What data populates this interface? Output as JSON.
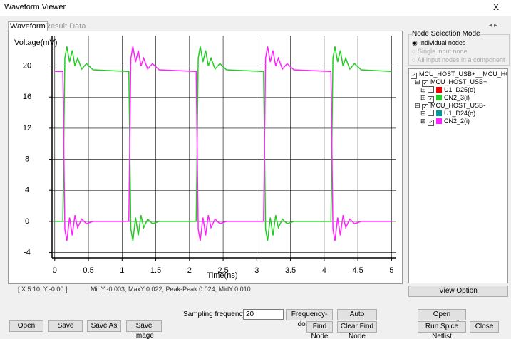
{
  "window": {
    "title": "Waveform Viewer",
    "close": "X"
  },
  "tabs": [
    "Waveform",
    "Result Data"
  ],
  "chart_data": {
    "type": "line",
    "ylabel": "Voltage(mV)",
    "xlabel": "Time(ns)",
    "x": [
      0,
      0.1,
      0.12,
      0.15,
      0.18,
      0.22,
      0.26,
      0.3,
      0.34,
      0.4,
      0.47,
      0.57,
      1.08,
      1.1,
      1.13,
      1.16,
      1.2,
      1.24,
      1.28,
      1.32,
      1.38,
      1.45,
      1.55,
      2.08,
      2.1,
      2.13,
      2.16,
      2.2,
      2.24,
      2.28,
      2.32,
      2.38,
      2.45,
      2.55,
      3.08,
      3.1,
      3.13,
      3.16,
      3.2,
      3.24,
      3.28,
      3.32,
      3.38,
      3.45,
      3.55,
      4.08,
      4.1,
      4.13,
      4.16,
      4.2,
      4.24,
      4.28,
      4.32,
      4.38,
      4.45,
      4.55,
      5
    ],
    "series": [
      {
        "name": "CN2_3(i)",
        "color": "#22cc22",
        "values": [
          0,
          0,
          0,
          21,
          22.5,
          20.5,
          22,
          20,
          21,
          19.6,
          20.3,
          19.5,
          19.3,
          19.3,
          -1,
          -2.5,
          0.5,
          -1.8,
          0.8,
          -0.8,
          0.3,
          -0.3,
          0,
          0,
          0,
          21,
          22.5,
          20.5,
          22,
          20,
          21,
          19.6,
          20.3,
          19.5,
          19.3,
          19.3,
          -1,
          -2.5,
          0.5,
          -1.8,
          0.8,
          -0.8,
          0.3,
          -0.3,
          0,
          0,
          0,
          21,
          22.5,
          20.5,
          22,
          20,
          21,
          19.6,
          20.3,
          19.5,
          19.3
        ]
      },
      {
        "name": "CN2_2(i)",
        "color": "#ff22ff",
        "values": [
          19.3,
          19.3,
          19.3,
          -1,
          -2.5,
          0.5,
          -1.8,
          0.8,
          -0.8,
          0.3,
          -0.3,
          0,
          0,
          0,
          21,
          22.5,
          20.5,
          22,
          20,
          21,
          19.6,
          20.3,
          19.5,
          19.3,
          19.3,
          -1,
          -2.5,
          0.5,
          -1.8,
          0.8,
          -0.8,
          0.3,
          -0.3,
          0,
          0,
          0,
          21,
          22.5,
          20.5,
          22,
          20,
          21,
          19.6,
          20.3,
          19.5,
          19.3,
          19.3,
          -1,
          -2.5,
          0.5,
          -1.8,
          0.8,
          -0.8,
          0.3,
          -0.3,
          0,
          0
        ]
      }
    ],
    "xlim": [
      -0.04,
      5.07
    ],
    "ylim": [
      -4.68,
      23.9
    ],
    "xticks": [
      0,
      0.5,
      1,
      1.5,
      2,
      2.5,
      3,
      3.5,
      4,
      4.5,
      5
    ],
    "yticks": [
      -4,
      0,
      4,
      8,
      12,
      16,
      20
    ],
    "grid": true
  },
  "status": {
    "cursor": "[ X:5.10, Y:-0.00 ]",
    "stats": "MinY:-0.003, MaxY:0.022, Peak-Peak:0.024, MidY:0.010"
  },
  "node_selection": {
    "title": "Node Selection Mode",
    "options": [
      "Individual nodes",
      "Single input node",
      "All input nodes in a component"
    ]
  },
  "tree": {
    "root": "MCU_HOST_USB+__MCU_HOST_",
    "groups": [
      {
        "name": "MCU_HOST_USB+",
        "other": {
          "label": "U1_D25(o)",
          "color": "#ee0000"
        }
      },
      {
        "name": "MCU_HOST_USB-",
        "other": {
          "label": "U1_D24(o)",
          "color": "#009999"
        }
      }
    ]
  },
  "buttons": {
    "view_option": "View Option",
    "open": "Open",
    "save": "Save",
    "save_as": "Save As",
    "save_image": "Save Image",
    "frequency_domain": "Frequency-domain",
    "auto_measure": "Auto Measure",
    "find_node": "Find Node",
    "clear_find_node": "Clear Find Node",
    "open_spiceout": "Open SpiceOut File",
    "run_spice": "Run Spice Netlist",
    "close": "Close"
  },
  "sampling": {
    "label": "Sampling frequency",
    "value": 20
  }
}
